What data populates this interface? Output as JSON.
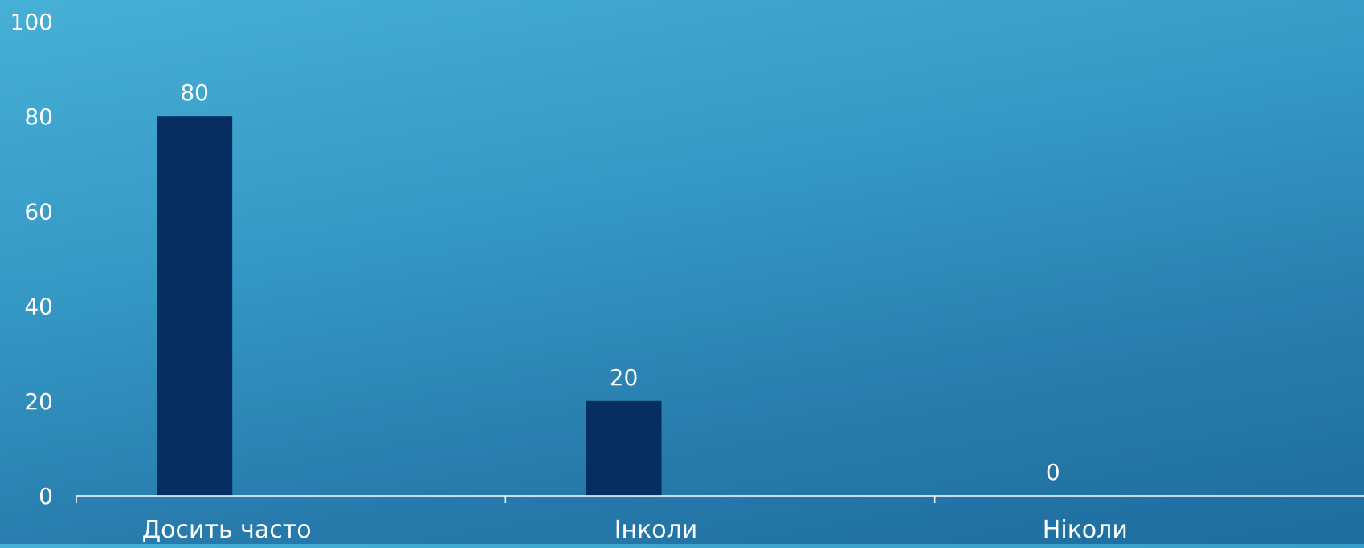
{
  "chart_data": {
    "type": "bar",
    "categories": [
      "Досить часто",
      "Інколи",
      "Ніколи"
    ],
    "values": [
      80,
      20,
      0
    ],
    "ylim": [
      0,
      100
    ],
    "yticks": [
      0,
      20,
      40,
      60,
      80,
      100
    ],
    "title": "",
    "xlabel": "",
    "ylabel": "",
    "grid": false,
    "data_labels": true,
    "bar_color": "#062e60",
    "axis_color": "#ffffff",
    "text_color": "#ffffff"
  }
}
